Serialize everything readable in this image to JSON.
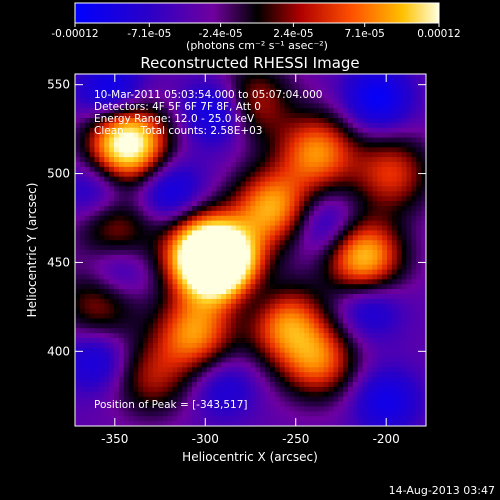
{
  "chart_data": {
    "type": "heatmap",
    "title": "Reconstructed RHESSI Image",
    "xlabel": "Heliocentric X (arcsec)",
    "ylabel": "Heliocentric Y (arcsec)",
    "xlim": [
      -372,
      -178
    ],
    "ylim": [
      358,
      556
    ],
    "x_ticks": [
      "-350",
      "-300",
      "-250",
      "-200"
    ],
    "x_tick_values": [
      -350,
      -300,
      -250,
      -200
    ],
    "y_ticks": [
      "550",
      "500",
      "450",
      "400"
    ],
    "y_tick_values": [
      550,
      500,
      450,
      400
    ],
    "colorbar": {
      "range": [
        -0.00012,
        0.00012
      ],
      "tick_labels": [
        "-0.00012",
        "-7.1e-05",
        "-2.4e-05",
        "2.4e-05",
        "7.1e-05",
        "0.00012"
      ],
      "tick_values": [
        -0.00012,
        -7.1e-05,
        -2.4e-05,
        2.4e-05,
        7.1e-05,
        0.00012
      ],
      "units_label": "(photons cm⁻² s⁻¹ asec⁻²)"
    },
    "annotations": [
      "10-Mar-2011 05:03:54.000 to 05:07:04.000",
      "Detectors: 4F 5F 6F 7F 8F, Att 0",
      "Energy Range: 12.0 - 25.0 keV",
      "Clean     Total counts: 2.58E+03"
    ],
    "peak_text": "Position of Peak = [-343,517]",
    "peak_position": [
      -343,
      517
    ],
    "hotspots": [
      {
        "x": -343,
        "y": 517,
        "amp": 1.0
      },
      {
        "x": -300,
        "y": 455,
        "amp": 0.95
      },
      {
        "x": -290,
        "y": 448,
        "amp": 0.9
      },
      {
        "x": -263,
        "y": 481,
        "amp": 0.65
      },
      {
        "x": -238,
        "y": 512,
        "amp": 0.6
      },
      {
        "x": -213,
        "y": 453,
        "amp": 0.75
      },
      {
        "x": -257,
        "y": 417,
        "amp": 0.6
      },
      {
        "x": -306,
        "y": 410,
        "amp": 0.6
      },
      {
        "x": -238,
        "y": 395,
        "amp": 0.55
      },
      {
        "x": -358,
        "y": 428,
        "amp": 0.4
      },
      {
        "x": -275,
        "y": 540,
        "amp": 0.45
      },
      {
        "x": -350,
        "y": 468,
        "amp": 0.4
      },
      {
        "x": -197,
        "y": 500,
        "amp": 0.45
      },
      {
        "x": -330,
        "y": 385,
        "amp": 0.35
      }
    ],
    "coldspots": [
      {
        "x": -352,
        "y": 545,
        "amp": 0.7
      },
      {
        "x": -292,
        "y": 535,
        "amp": 0.8
      },
      {
        "x": -205,
        "y": 542,
        "amp": 0.7
      },
      {
        "x": -320,
        "y": 490,
        "amp": 0.6
      },
      {
        "x": -233,
        "y": 470,
        "amp": 0.55
      },
      {
        "x": -350,
        "y": 445,
        "amp": 0.6
      },
      {
        "x": -272,
        "y": 430,
        "amp": 0.45
      },
      {
        "x": -210,
        "y": 425,
        "amp": 0.5
      },
      {
        "x": -360,
        "y": 395,
        "amp": 0.5
      },
      {
        "x": -290,
        "y": 380,
        "amp": 0.4
      },
      {
        "x": -200,
        "y": 372,
        "amp": 0.55
      },
      {
        "x": -360,
        "y": 490,
        "amp": 0.5
      }
    ]
  },
  "footer": {
    "date": "14-Aug-2013 03:47"
  }
}
